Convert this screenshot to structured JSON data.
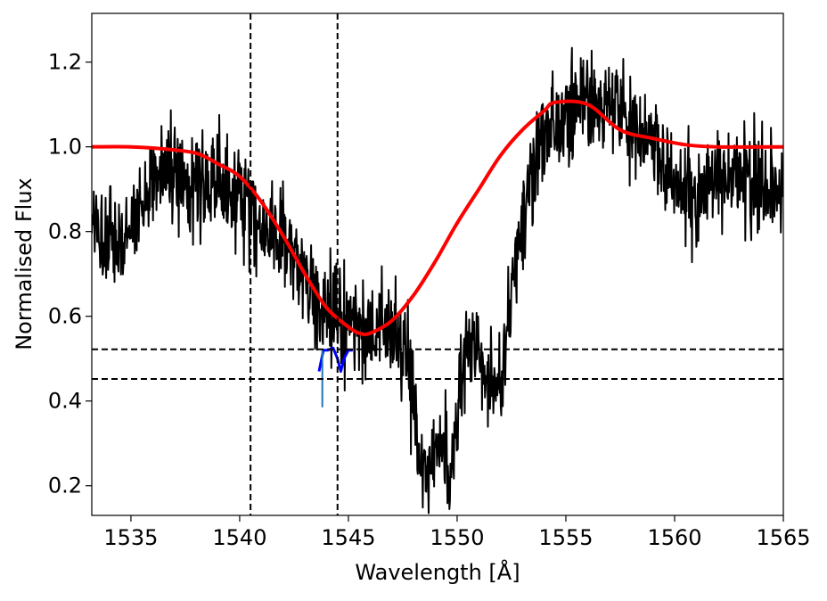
{
  "chart_data": {
    "type": "line",
    "title": "",
    "xlabel": "Wavelength [Å]",
    "ylabel": "Normalised Flux",
    "xlim": [
      1533.2,
      1565.0
    ],
    "ylim": [
      0.13,
      1.315
    ],
    "xticks": [
      1535,
      1540,
      1545,
      1550,
      1555,
      1560,
      1565
    ],
    "xtick_labels": [
      "1535",
      "1540",
      "1545",
      "1550",
      "1555",
      "1560",
      "1565"
    ],
    "yticks": [
      0.2,
      0.4,
      0.6,
      0.8,
      1.0,
      1.2
    ],
    "ytick_labels": [
      "0.2",
      "0.4",
      "0.6",
      "0.8",
      "1.0",
      "1.2"
    ],
    "grid": false,
    "series": [
      {
        "role": "observed-spectrum",
        "color": "#000000",
        "style": "noisy-line",
        "noise_sigma": 0.06,
        "x": [
          1533.2,
          1533.5,
          1534.0,
          1534.5,
          1535.0,
          1535.5,
          1536.0,
          1537.0,
          1538.0,
          1539.0,
          1540.0,
          1541.0,
          1542.0,
          1543.0,
          1544.0,
          1545.0,
          1546.0,
          1547.0,
          1547.7,
          1548.0,
          1548.3,
          1548.6,
          1549.0,
          1549.3,
          1549.5,
          1549.7,
          1550.0,
          1550.3,
          1550.6,
          1551.0,
          1551.4,
          1551.8,
          1552.2,
          1552.6,
          1553.0,
          1553.5,
          1554.0,
          1555.0,
          1556.0,
          1557.0,
          1558.0,
          1559.0,
          1560.0,
          1561.0,
          1562.0,
          1563.0,
          1564.0,
          1565.0
        ],
        "y": [
          0.86,
          0.78,
          0.76,
          0.78,
          0.8,
          0.85,
          0.92,
          0.95,
          0.92,
          0.9,
          0.88,
          0.82,
          0.78,
          0.7,
          0.6,
          0.57,
          0.57,
          0.55,
          0.5,
          0.38,
          0.27,
          0.23,
          0.26,
          0.3,
          0.24,
          0.22,
          0.37,
          0.48,
          0.55,
          0.5,
          0.45,
          0.42,
          0.5,
          0.7,
          0.85,
          0.95,
          1.02,
          1.08,
          1.12,
          1.1,
          1.05,
          1.0,
          0.9,
          0.9,
          0.91,
          0.93,
          0.92,
          0.9
        ]
      },
      {
        "role": "model-fit",
        "color": "#ff0000",
        "style": "smooth-line",
        "x": [
          1533.2,
          1535.0,
          1536.5,
          1538.0,
          1539.0,
          1540.0,
          1541.0,
          1542.0,
          1543.0,
          1544.0,
          1545.0,
          1545.5,
          1546.0,
          1547.0,
          1548.0,
          1549.0,
          1550.0,
          1551.0,
          1552.0,
          1553.0,
          1554.0,
          1554.5,
          1556.0,
          1557.5,
          1559.0,
          1560.5,
          1562.0,
          1565.0
        ],
        "y": [
          1.0,
          1.0,
          0.995,
          0.985,
          0.96,
          0.93,
          0.87,
          0.79,
          0.7,
          0.62,
          0.575,
          0.56,
          0.56,
          0.59,
          0.65,
          0.73,
          0.82,
          0.9,
          0.98,
          1.04,
          1.085,
          1.105,
          1.1,
          1.04,
          1.02,
          1.005,
          1.0,
          1.0
        ]
      },
      {
        "role": "absorption-components",
        "color": "#0000ff",
        "style": "line",
        "x": [
          1543.65,
          1543.85,
          1544.05,
          1544.3,
          1544.5,
          1544.65,
          1544.8,
          1545.0,
          1545.2
        ],
        "y": [
          0.47,
          0.52,
          0.52,
          0.525,
          0.5,
          0.47,
          0.5,
          0.52,
          0.52
        ]
      },
      {
        "role": "component-marker",
        "color": "#1f77b4",
        "style": "line",
        "x": [
          1543.8,
          1543.8
        ],
        "y": [
          0.52,
          0.385
        ]
      }
    ],
    "reference_lines": {
      "vertical_x": [
        1540.5,
        1544.5
      ],
      "horizontal_y": [
        0.522,
        0.452
      ],
      "style": "dashed",
      "color": "#000000"
    }
  }
}
